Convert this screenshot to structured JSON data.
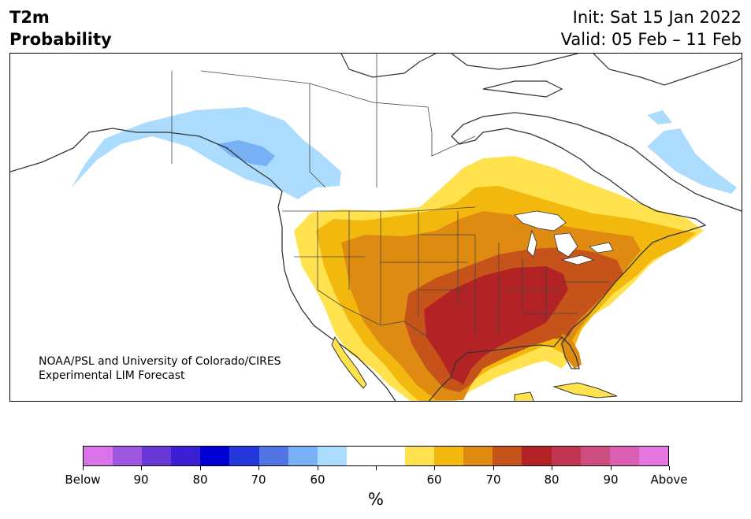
{
  "header": {
    "title_line1": "T2m",
    "title_line2": "Probability",
    "init": "Init: Sat 15 Jan 2022",
    "valid": "Valid: 05 Feb – 11 Feb"
  },
  "credit": {
    "line1": "NOAA/PSL and University of Colorado/CIRES",
    "line2": "Experimental LIM Forecast"
  },
  "colorbar": {
    "units": "%",
    "colors": [
      "#d973e8",
      "#9d57e0",
      "#6a38d6",
      "#3a1fd4",
      "#0000d4",
      "#2337db",
      "#5275e6",
      "#77b1f5",
      "#acdcfd",
      "#ffffff",
      "#ffffff",
      "#ffe24d",
      "#f2b80e",
      "#df8b11",
      "#c6541a",
      "#b32325",
      "#c03651",
      "#cf4e82",
      "#db5eb3",
      "#e676df"
    ],
    "labels": [
      "Below",
      "90",
      "80",
      "70",
      "60",
      "60",
      "70",
      "80",
      "90",
      "Above"
    ]
  },
  "legend_colors": {
    "below_60": "#acdcfd",
    "below_70": "#77b1f5",
    "above_60": "#ffe24d",
    "above_70": "#f2b80e",
    "above_80": "#df8b11",
    "above_90": "#c6541a",
    "above_max": "#b32325"
  }
}
